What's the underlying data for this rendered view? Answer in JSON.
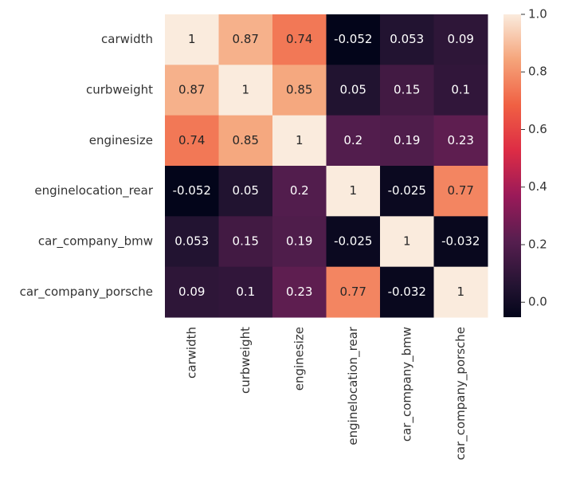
{
  "chart_data": {
    "type": "heatmap",
    "x_categories": [
      "carwidth",
      "curbweight",
      "enginesize",
      "enginelocation_rear",
      "car_company_bmw",
      "car_company_porsche"
    ],
    "y_categories": [
      "carwidth",
      "curbweight",
      "enginesize",
      "enginelocation_rear",
      "car_company_bmw",
      "car_company_porsche"
    ],
    "values": [
      [
        1,
        0.87,
        0.74,
        -0.052,
        0.053,
        0.09
      ],
      [
        0.87,
        1,
        0.85,
        0.05,
        0.15,
        0.1
      ],
      [
        0.74,
        0.85,
        1,
        0.2,
        0.19,
        0.23
      ],
      [
        -0.052,
        0.05,
        0.2,
        1,
        -0.025,
        0.77
      ],
      [
        0.053,
        0.15,
        0.19,
        -0.025,
        1,
        -0.032
      ],
      [
        0.09,
        0.1,
        0.23,
        0.77,
        -0.032,
        1
      ]
    ],
    "colormap": "rocket",
    "clim": [
      -0.052,
      1
    ],
    "cbar_ticks": [
      {
        "value": 0,
        "label": "0.0"
      },
      {
        "value": 0.2,
        "label": "0.2"
      },
      {
        "value": 0.4,
        "label": "0.4"
      },
      {
        "value": 0.6,
        "label": "0.6"
      },
      {
        "value": 0.8,
        "label": "0.8"
      },
      {
        "value": 1,
        "label": "1.0"
      }
    ]
  }
}
